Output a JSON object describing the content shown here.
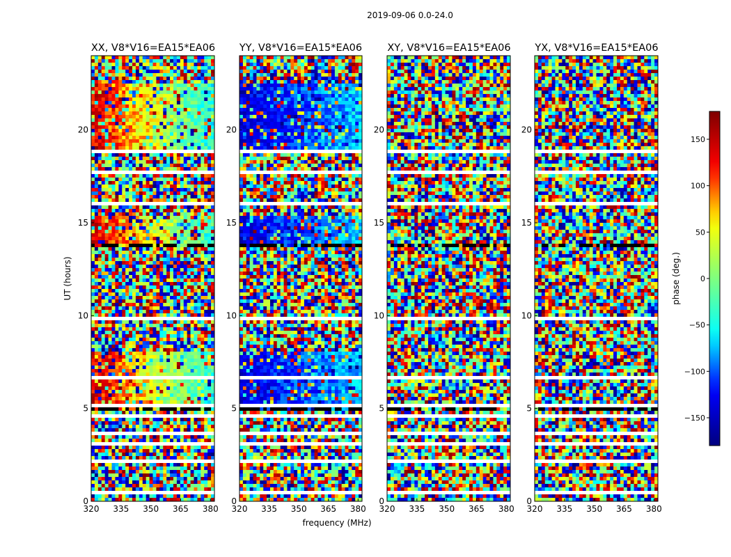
{
  "chart_data": {
    "type": "heatmap",
    "title": "2019-09-06 0.0-24.0",
    "xlabel": "frequency (MHz)",
    "ylabel": "UT (hours)",
    "xlim": [
      320,
      382
    ],
    "ylim": [
      0,
      24
    ],
    "xticks": [
      320,
      335,
      350,
      365,
      380
    ],
    "yticks": [
      0,
      5,
      10,
      15,
      20
    ],
    "panels": [
      {
        "name": "xx",
        "title": "XX, V8*V16=EA15*EA06",
        "description": "structured phase, red at low frequency trending to cyan at high frequency"
      },
      {
        "name": "yy",
        "title": "YY, V8*V16=EA15*EA06",
        "description": "structured phase, mostly blue across band"
      },
      {
        "name": "xy",
        "title": "XY, V8*V16=EA15*EA06",
        "description": "noise-like random phase"
      },
      {
        "name": "yx",
        "title": "YX, V8*V16=EA15*EA06",
        "description": "noise-like random phase"
      }
    ],
    "colorbar": {
      "label": "phase (deg.)",
      "range": [
        -180,
        180
      ],
      "ticks": [
        150,
        100,
        50,
        0,
        -50,
        -100,
        -150
      ],
      "tick_labels": [
        "150",
        "100",
        "50",
        "0",
        "−50",
        "−100",
        "−150"
      ],
      "colormap": "jet",
      "colors": [
        "#00007f",
        "#0000ff",
        "#00ffff",
        "#7fff7f",
        "#ffff00",
        "#ff0000",
        "#7f0000"
      ]
    },
    "flagged_bands_ut_hours": [
      [
        0.45,
        0.5
      ],
      [
        1.45,
        1.55
      ],
      [
        2.05,
        2.25
      ],
      [
        2.95,
        3.1
      ],
      [
        3.6,
        3.7
      ],
      [
        4.5,
        4.6
      ],
      [
        5.15,
        5.25
      ],
      [
        6.15,
        6.25
      ],
      [
        6.65,
        6.75
      ],
      [
        7.6,
        7.75
      ],
      [
        9.8,
        9.9
      ],
      [
        11.55,
        11.65
      ],
      [
        12.85,
        12.95
      ],
      [
        14.35,
        14.45
      ],
      [
        15.95,
        16.05
      ],
      [
        17.6,
        17.75
      ],
      [
        18.1,
        18.2
      ],
      [
        18.75,
        18.85
      ],
      [
        21.3,
        21.4
      ],
      [
        22.6,
        22.75
      ],
      [
        23.05,
        23.15
      ]
    ],
    "dark_bands_ut_hours": [
      [
        4.95,
        5.05
      ],
      [
        5.35,
        5.4
      ],
      [
        13.75,
        13.8
      ],
      [
        14.1,
        14.15
      ],
      [
        15.1,
        15.15
      ],
      [
        16.3,
        16.35
      ],
      [
        19.25,
        19.3
      ],
      [
        7.25,
        7.3
      ],
      [
        10.5,
        10.55
      ]
    ]
  }
}
